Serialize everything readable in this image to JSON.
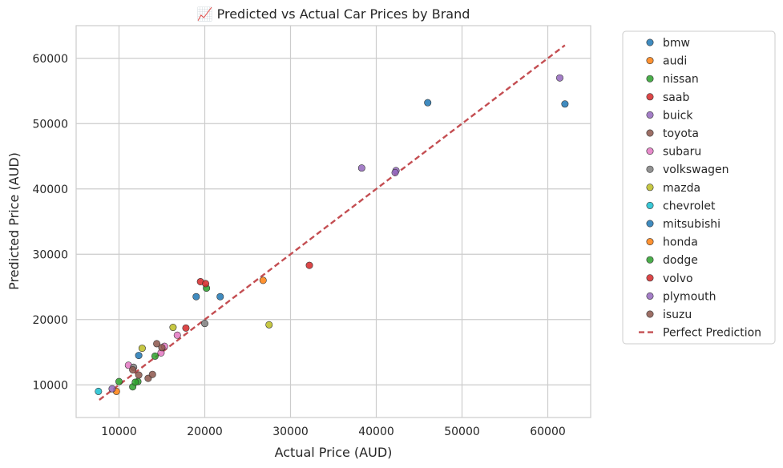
{
  "chart_data": {
    "type": "scatter",
    "title": "📈 Predicted vs Actual Car Prices by Brand",
    "xlabel": "Actual Price (AUD)",
    "ylabel": "Predicted Price (AUD)",
    "xlim": [
      5000,
      65000
    ],
    "ylim": [
      5000,
      65000
    ],
    "xticks": [
      10000,
      20000,
      30000,
      40000,
      50000,
      60000
    ],
    "yticks": [
      10000,
      20000,
      30000,
      40000,
      50000,
      60000
    ],
    "grid": true,
    "legend_position": "outside-right",
    "series": [
      {
        "name": "bmw",
        "color": "#1f77b4",
        "points": [
          [
            46000,
            53200
          ],
          [
            62000,
            53000
          ],
          [
            19000,
            23500
          ],
          [
            21800,
            23500
          ]
        ]
      },
      {
        "name": "audi",
        "color": "#ff7f0e",
        "points": [
          [
            26800,
            26000
          ]
        ]
      },
      {
        "name": "nissan",
        "color": "#2ca02c",
        "points": [
          [
            20200,
            24800
          ],
          [
            10000,
            10500
          ],
          [
            12200,
            10500
          ]
        ]
      },
      {
        "name": "saab",
        "color": "#d62728",
        "points": [
          [
            19500,
            25800
          ],
          [
            20100,
            25500
          ],
          [
            17800,
            18700
          ]
        ]
      },
      {
        "name": "buick",
        "color": "#9467bd",
        "points": [
          [
            38300,
            43200
          ],
          [
            42300,
            42800
          ],
          [
            42200,
            42500
          ],
          [
            61400,
            57000
          ]
        ]
      },
      {
        "name": "toyota",
        "color": "#8c564b",
        "points": [
          [
            14400,
            16300
          ],
          [
            12300,
            11500
          ],
          [
            13400,
            11000
          ]
        ]
      },
      {
        "name": "subaru",
        "color": "#e377c2",
        "points": [
          [
            11100,
            13000
          ],
          [
            15300,
            15900
          ],
          [
            14900,
            14900
          ],
          [
            16800,
            17600
          ]
        ]
      },
      {
        "name": "volkswagen",
        "color": "#7f7f7f",
        "points": [
          [
            20000,
            19400
          ],
          [
            11700,
            12700
          ]
        ]
      },
      {
        "name": "mazda",
        "color": "#bcbd22",
        "points": [
          [
            27500,
            19200
          ],
          [
            16300,
            18800
          ],
          [
            12700,
            15600
          ]
        ]
      },
      {
        "name": "chevrolet",
        "color": "#17becf",
        "points": [
          [
            7600,
            9000
          ]
        ]
      },
      {
        "name": "mitsubishi",
        "color": "#1f77b4",
        "points": [
          [
            12300,
            14500
          ]
        ]
      },
      {
        "name": "honda",
        "color": "#ff7f0e",
        "points": [
          [
            9700,
            9000
          ]
        ]
      },
      {
        "name": "dodge",
        "color": "#2ca02c",
        "points": [
          [
            14200,
            14400
          ],
          [
            11600,
            9700
          ],
          [
            11900,
            10400
          ]
        ]
      },
      {
        "name": "volvo",
        "color": "#d62728",
        "points": [
          [
            32200,
            28300
          ]
        ]
      },
      {
        "name": "plymouth",
        "color": "#9467bd",
        "points": [
          [
            9200,
            9400
          ]
        ]
      },
      {
        "name": "isuzu",
        "color": "#8c564b",
        "points": [
          [
            11600,
            12300
          ],
          [
            13900,
            11600
          ],
          [
            15000,
            15700
          ]
        ]
      }
    ],
    "reference_line": {
      "name": "Perfect Prediction",
      "color": "#c44e52",
      "style": "dashed",
      "from": [
        7700,
        7700
      ],
      "to": [
        62000,
        62000
      ]
    }
  }
}
